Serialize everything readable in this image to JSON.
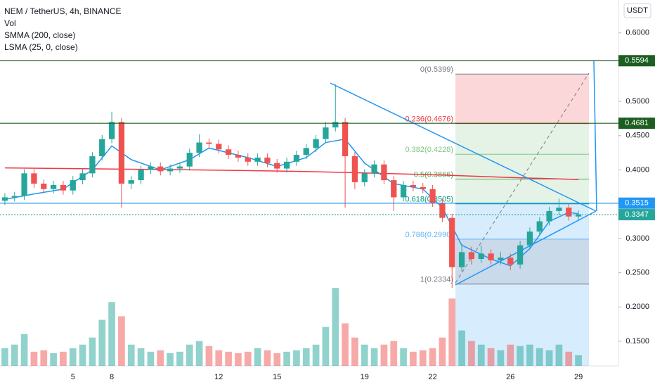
{
  "chart_data": {
    "type": "candlestick",
    "title": "NEM / TetherUS, 4h, BINANCE",
    "indicators": [
      "Vol",
      "SMMA (200, close)",
      "LSMA (25, 0, close)"
    ],
    "currency": "USDT",
    "categories": [
      null,
      null,
      null,
      null,
      null,
      null,
      null,
      "5",
      null,
      null,
      null,
      "8",
      null,
      null,
      null,
      null,
      null,
      null,
      null,
      null,
      null,
      null,
      "12",
      null,
      null,
      null,
      null,
      null,
      "15",
      null,
      null,
      null,
      null,
      null,
      null,
      null,
      null,
      "19",
      null,
      null,
      null,
      null,
      null,
      null,
      "22",
      null,
      null,
      null,
      null,
      null,
      null,
      null,
      "26",
      null,
      null,
      null,
      null,
      null,
      null,
      "29"
    ],
    "open": [
      0.355,
      0.36,
      0.362,
      0.395,
      0.38,
      0.372,
      0.378,
      0.37,
      0.385,
      0.395,
      0.42,
      0.445,
      0.47,
      0.38,
      0.385,
      0.4,
      0.405,
      0.398,
      0.402,
      0.405,
      0.425,
      0.44,
      0.438,
      0.43,
      0.422,
      0.418,
      0.412,
      0.418,
      0.41,
      0.402,
      0.412,
      0.422,
      0.432,
      0.445,
      0.462,
      0.47,
      0.42,
      0.382,
      0.395,
      0.408,
      0.385,
      0.36,
      0.378,
      0.375,
      0.372,
      0.352,
      0.33,
      0.258,
      0.28,
      0.27,
      0.278,
      0.268,
      0.272,
      0.262,
      0.29,
      0.31,
      0.325,
      0.34,
      0.345,
      0.332
    ],
    "high": [
      0.366,
      0.368,
      0.401,
      0.401,
      0.386,
      0.384,
      0.384,
      0.391,
      0.401,
      0.426,
      0.451,
      0.485,
      0.476,
      0.391,
      0.406,
      0.411,
      0.411,
      0.408,
      0.411,
      0.431,
      0.452,
      0.446,
      0.444,
      0.436,
      0.428,
      0.424,
      0.424,
      0.424,
      0.416,
      0.418,
      0.428,
      0.438,
      0.451,
      0.47,
      0.525,
      0.476,
      0.426,
      0.401,
      0.414,
      0.414,
      0.391,
      0.384,
      0.384,
      0.381,
      0.378,
      0.358,
      0.336,
      0.292,
      0.288,
      0.29,
      0.284,
      0.28,
      0.278,
      0.296,
      0.316,
      0.331,
      0.346,
      0.358,
      0.351,
      0.341
    ],
    "low": [
      0.349,
      0.354,
      0.356,
      0.374,
      0.366,
      0.366,
      0.364,
      0.364,
      0.379,
      0.389,
      0.414,
      0.439,
      0.345,
      0.372,
      0.379,
      0.394,
      0.392,
      0.392,
      0.396,
      0.399,
      0.419,
      0.432,
      0.424,
      0.416,
      0.412,
      0.406,
      0.406,
      0.404,
      0.396,
      0.396,
      0.406,
      0.416,
      0.426,
      0.439,
      0.456,
      0.345,
      0.372,
      0.376,
      0.389,
      0.379,
      0.34,
      0.354,
      0.369,
      0.366,
      0.346,
      0.324,
      0.228,
      0.252,
      0.262,
      0.264,
      0.262,
      0.262,
      0.254,
      0.256,
      0.284,
      0.304,
      0.319,
      0.334,
      0.326,
      0.326
    ],
    "close": [
      0.36,
      0.362,
      0.395,
      0.38,
      0.372,
      0.378,
      0.37,
      0.385,
      0.395,
      0.42,
      0.445,
      0.47,
      0.38,
      0.385,
      0.4,
      0.405,
      0.398,
      0.402,
      0.405,
      0.425,
      0.44,
      0.438,
      0.43,
      0.422,
      0.418,
      0.412,
      0.418,
      0.41,
      0.402,
      0.412,
      0.422,
      0.432,
      0.445,
      0.462,
      0.47,
      0.42,
      0.382,
      0.395,
      0.408,
      0.385,
      0.36,
      0.378,
      0.375,
      0.372,
      0.352,
      0.33,
      0.258,
      0.28,
      0.27,
      0.278,
      0.268,
      0.272,
      0.262,
      0.29,
      0.31,
      0.325,
      0.34,
      0.345,
      0.332,
      0.335
    ],
    "volume": [
      25,
      30,
      45,
      20,
      22,
      18,
      20,
      25,
      30,
      40,
      65,
      90,
      70,
      30,
      25,
      20,
      22,
      18,
      20,
      30,
      35,
      28,
      22,
      20,
      18,
      20,
      25,
      22,
      18,
      20,
      22,
      25,
      30,
      55,
      110,
      60,
      40,
      30,
      25,
      30,
      35,
      25,
      20,
      22,
      25,
      40,
      95,
      50,
      35,
      30,
      25,
      22,
      30,
      28,
      30,
      25,
      22,
      30,
      20,
      15
    ],
    "vlim": [
      0,
      160
    ],
    "up_color": "#26a69a",
    "down_color": "#ef5350",
    "lines": [
      {
        "name": "SMMA (200, close)",
        "color": "#f23645",
        "x": [
          0,
          20,
          30,
          36,
          44,
          52,
          59
        ],
        "values": [
          0.403,
          0.4,
          0.398,
          0.396,
          0.393,
          0.389,
          0.386
        ]
      },
      {
        "name": "LSMA (25, 0, close)",
        "color": "#2196f3",
        "x": [
          0,
          3,
          6,
          9,
          11,
          13,
          16,
          19,
          21,
          25,
          28,
          31,
          33,
          35,
          37,
          40,
          43,
          45,
          47,
          50,
          52,
          54,
          56,
          58,
          59
        ],
        "values": [
          0.357,
          0.365,
          0.372,
          0.4,
          0.435,
          0.415,
          0.4,
          0.415,
          0.432,
          0.418,
          0.405,
          0.418,
          0.44,
          0.445,
          0.41,
          0.38,
          0.372,
          0.345,
          0.29,
          0.27,
          0.26,
          0.285,
          0.325,
          0.338,
          0.336
        ]
      }
    ],
    "fib_levels": [
      {
        "price": 0.5399,
        "label": "0(0.5399)",
        "color": "#787b86"
      },
      {
        "price": 0.4676,
        "label": "0.236(0.4676)",
        "color": "#f23645"
      },
      {
        "price": 0.4228,
        "label": "0.382(0.4228)",
        "color": "#81c784"
      },
      {
        "price": 0.3866,
        "label": "0.5(0.3866)",
        "color": "#4caf50"
      },
      {
        "price": 0.3505,
        "label": "0.618(0.3505)",
        "color": "#089981"
      },
      {
        "price": 0.299,
        "label": "0.786(0.2990)",
        "color": "#64b5f6"
      },
      {
        "price": 0.2334,
        "label": "1(0.2334)",
        "color": "#787b86"
      }
    ],
    "price_lines": [
      {
        "value": 0.5594,
        "color": "#1b5e20"
      },
      {
        "value": 0.4681,
        "color": "#1b5e20"
      },
      {
        "value": 0.3515,
        "color": "#2196f3"
      },
      {
        "value": 0.3347,
        "color": "#26a69a",
        "dashed": true
      }
    ],
    "ylim": [
      0.114,
      0.648
    ],
    "yticks": [
      {
        "value": 0.6,
        "label": "0.6000"
      },
      {
        "value": 0.5,
        "label": "0.5000"
      },
      {
        "value": 0.45,
        "label": "0.4500"
      },
      {
        "value": 0.4,
        "label": "0.4000"
      },
      {
        "value": 0.3,
        "label": "0.3000"
      },
      {
        "value": 0.25,
        "label": "0.2500"
      },
      {
        "value": 0.2,
        "label": "0.2000"
      },
      {
        "value": 0.15,
        "label": "0.1500"
      }
    ]
  }
}
